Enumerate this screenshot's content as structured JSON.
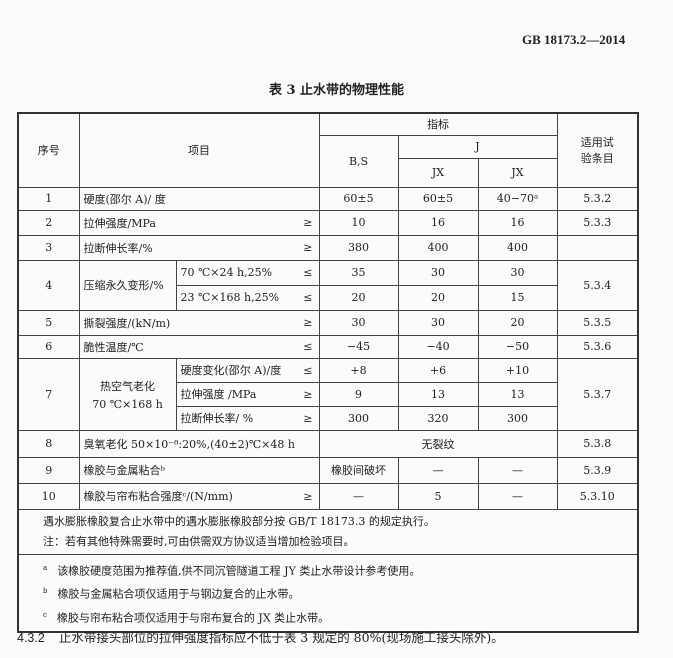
{
  "header": {
    "standard": "GB 18173.2—2014"
  },
  "table": {
    "title": "表 3  止水带的物理性能",
    "head": {
      "seq": "序号",
      "item": "项目",
      "index": "指标",
      "bs": "B,S",
      "j": "J",
      "jx1": "JX",
      "jx2": "JX",
      "test": "适用试验条目",
      "test1": "适用试",
      "test2": "验条目"
    },
    "rows": [
      {
        "no": "1",
        "item": "硬度(邵尔 A)/ 度",
        "op": "",
        "bs": "60±5",
        "jx1": "60±5",
        "jx2": "40−70ᵃ",
        "test": "5.3.2"
      },
      {
        "no": "2",
        "item": "拉伸强度/MPa",
        "op": "≥",
        "bs": "10",
        "jx1": "16",
        "jx2": "16",
        "test": "5.3.3"
      },
      {
        "no": "3",
        "item": "拉断伸长率/%",
        "op": "≥",
        "bs": "380",
        "jx1": "400",
        "jx2": "400",
        "test": ""
      },
      {
        "no": "4",
        "item": "压缩永久变形/%",
        "test": "5.3.4",
        "sub": [
          {
            "cond": "70 ℃×24 h,25%",
            "op": "≤",
            "bs": "35",
            "jx1": "30",
            "jx2": "30"
          },
          {
            "cond": "23 ℃×168 h,25%",
            "op": "≤",
            "bs": "20",
            "jx1": "20",
            "jx2": "15"
          }
        ]
      },
      {
        "no": "5",
        "item": "撕裂强度/(kN/m)",
        "op": "≥",
        "bs": "30",
        "jx1": "30",
        "jx2": "20",
        "test": "5.3.5"
      },
      {
        "no": "6",
        "item": "脆性温度/℃",
        "op": "≤",
        "bs": "−45",
        "jx1": "−40",
        "jx2": "−50",
        "test": "5.3.6"
      },
      {
        "no": "7",
        "item": "热空气老化",
        "item2": "70 ℃×168 h",
        "test": "5.3.7",
        "sub": [
          {
            "cond": "硬度变化(邵尔 A)/度",
            "op": "≤",
            "bs": "+8",
            "jx1": "+6",
            "jx2": "+10"
          },
          {
            "cond": "拉伸强度 /MPa",
            "op": "≥",
            "bs": "9",
            "jx1": "13",
            "jx2": "13"
          },
          {
            "cond": "拉断伸长率/ %",
            "op": "≥",
            "bs": "300",
            "jx1": "320",
            "jx2": "300"
          }
        ]
      },
      {
        "no": "8",
        "item": "臭氧老化 50×10⁻⁸:20%,(40±2)℃×48 h",
        "value": "无裂纹",
        "test": "5.3.8"
      },
      {
        "no": "9",
        "item": "橡胶与金属粘合ᵇ",
        "bs": "橡胶间破坏",
        "jx1": "—",
        "jx2": "—",
        "test": "5.3.9"
      },
      {
        "no": "10",
        "item": "橡胶与帘布粘合强度ᶜ/(N/mm)",
        "op": "≥",
        "bs": "—",
        "jx1": "5",
        "jx2": "—",
        "test": "5.3.10"
      }
    ],
    "notes": [
      "遇水膨胀橡胶复合止水带中的遇水膨胀橡胶部分按 GB/T 18173.3 的规定执行。",
      "注：若有其他特殊需要时,可由供需双方协议适当增加检验项目。"
    ],
    "footnotes": [
      {
        "mark": "a",
        "text": "该橡胶硬度范围为推荐值,供不同沉管隧道工程 JY 类止水带设计参考使用。"
      },
      {
        "mark": "b",
        "text": "橡胶与金属粘合项仅适用于与钢边复合的止水带。"
      },
      {
        "mark": "c",
        "text": "橡胶与帘布粘合项仅适用于与帘布复合的 JX 类止水带。"
      }
    ]
  },
  "clause": {
    "number": "4.3.2",
    "text": "止水带接头部位的拉伸强度指标应不低于表 3 规定的 80%(现场施工接头除外)。"
  }
}
